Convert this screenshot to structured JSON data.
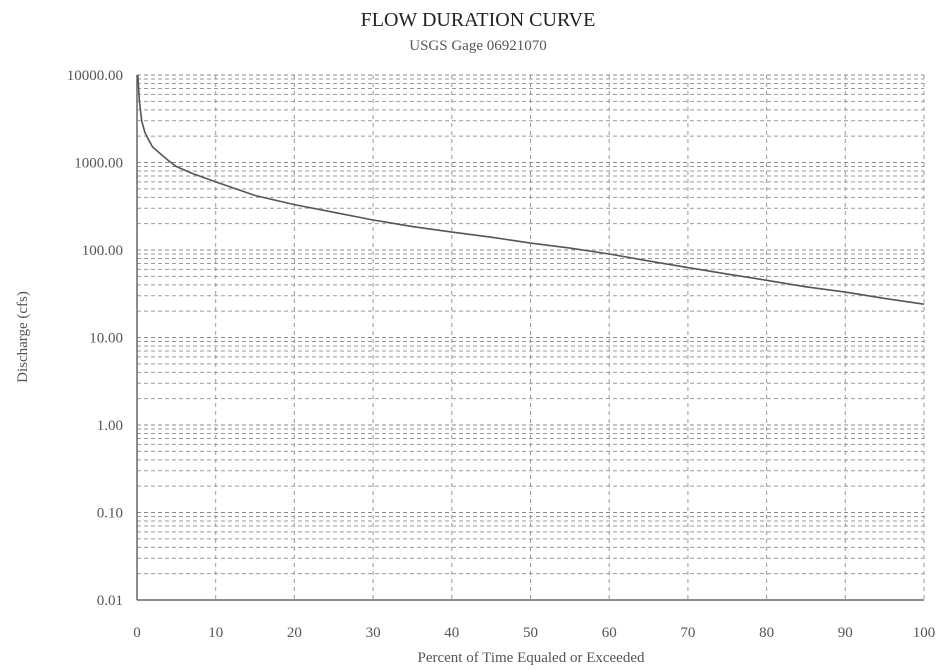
{
  "chart_data": {
    "type": "line",
    "title": "FLOW DURATION CURVE",
    "subtitle": "USGS Gage 06921070",
    "xlabel": "Percent of Time Equaled or Exceeded",
    "ylabel": "Discharge (cfs)",
    "xlim": [
      0,
      100
    ],
    "ylim": [
      0.01,
      10000
    ],
    "yscale": "log",
    "grid": true,
    "x_ticks": [
      "0",
      "10",
      "20",
      "30",
      "40",
      "50",
      "60",
      "70",
      "80",
      "90",
      "100"
    ],
    "y_ticks": [
      "10000.00",
      "1000.00",
      "100.00",
      "10.00",
      "1.00",
      "0.10",
      "0.01"
    ],
    "series": [
      {
        "x": [
          0.1,
          0.3,
          0.6,
          1,
          1.5,
          2,
          3,
          4,
          5,
          7,
          10,
          15,
          20,
          25,
          30,
          35,
          40,
          45,
          50,
          55,
          60,
          65,
          70,
          75,
          80,
          85,
          90,
          95,
          100
        ],
        "y": [
          10000,
          5000,
          3000,
          2200,
          1800,
          1500,
          1250,
          1050,
          900,
          750,
          600,
          420,
          330,
          270,
          220,
          185,
          160,
          140,
          120,
          105,
          90,
          75,
          63,
          53,
          45,
          38,
          33,
          28,
          24
        ]
      }
    ]
  }
}
